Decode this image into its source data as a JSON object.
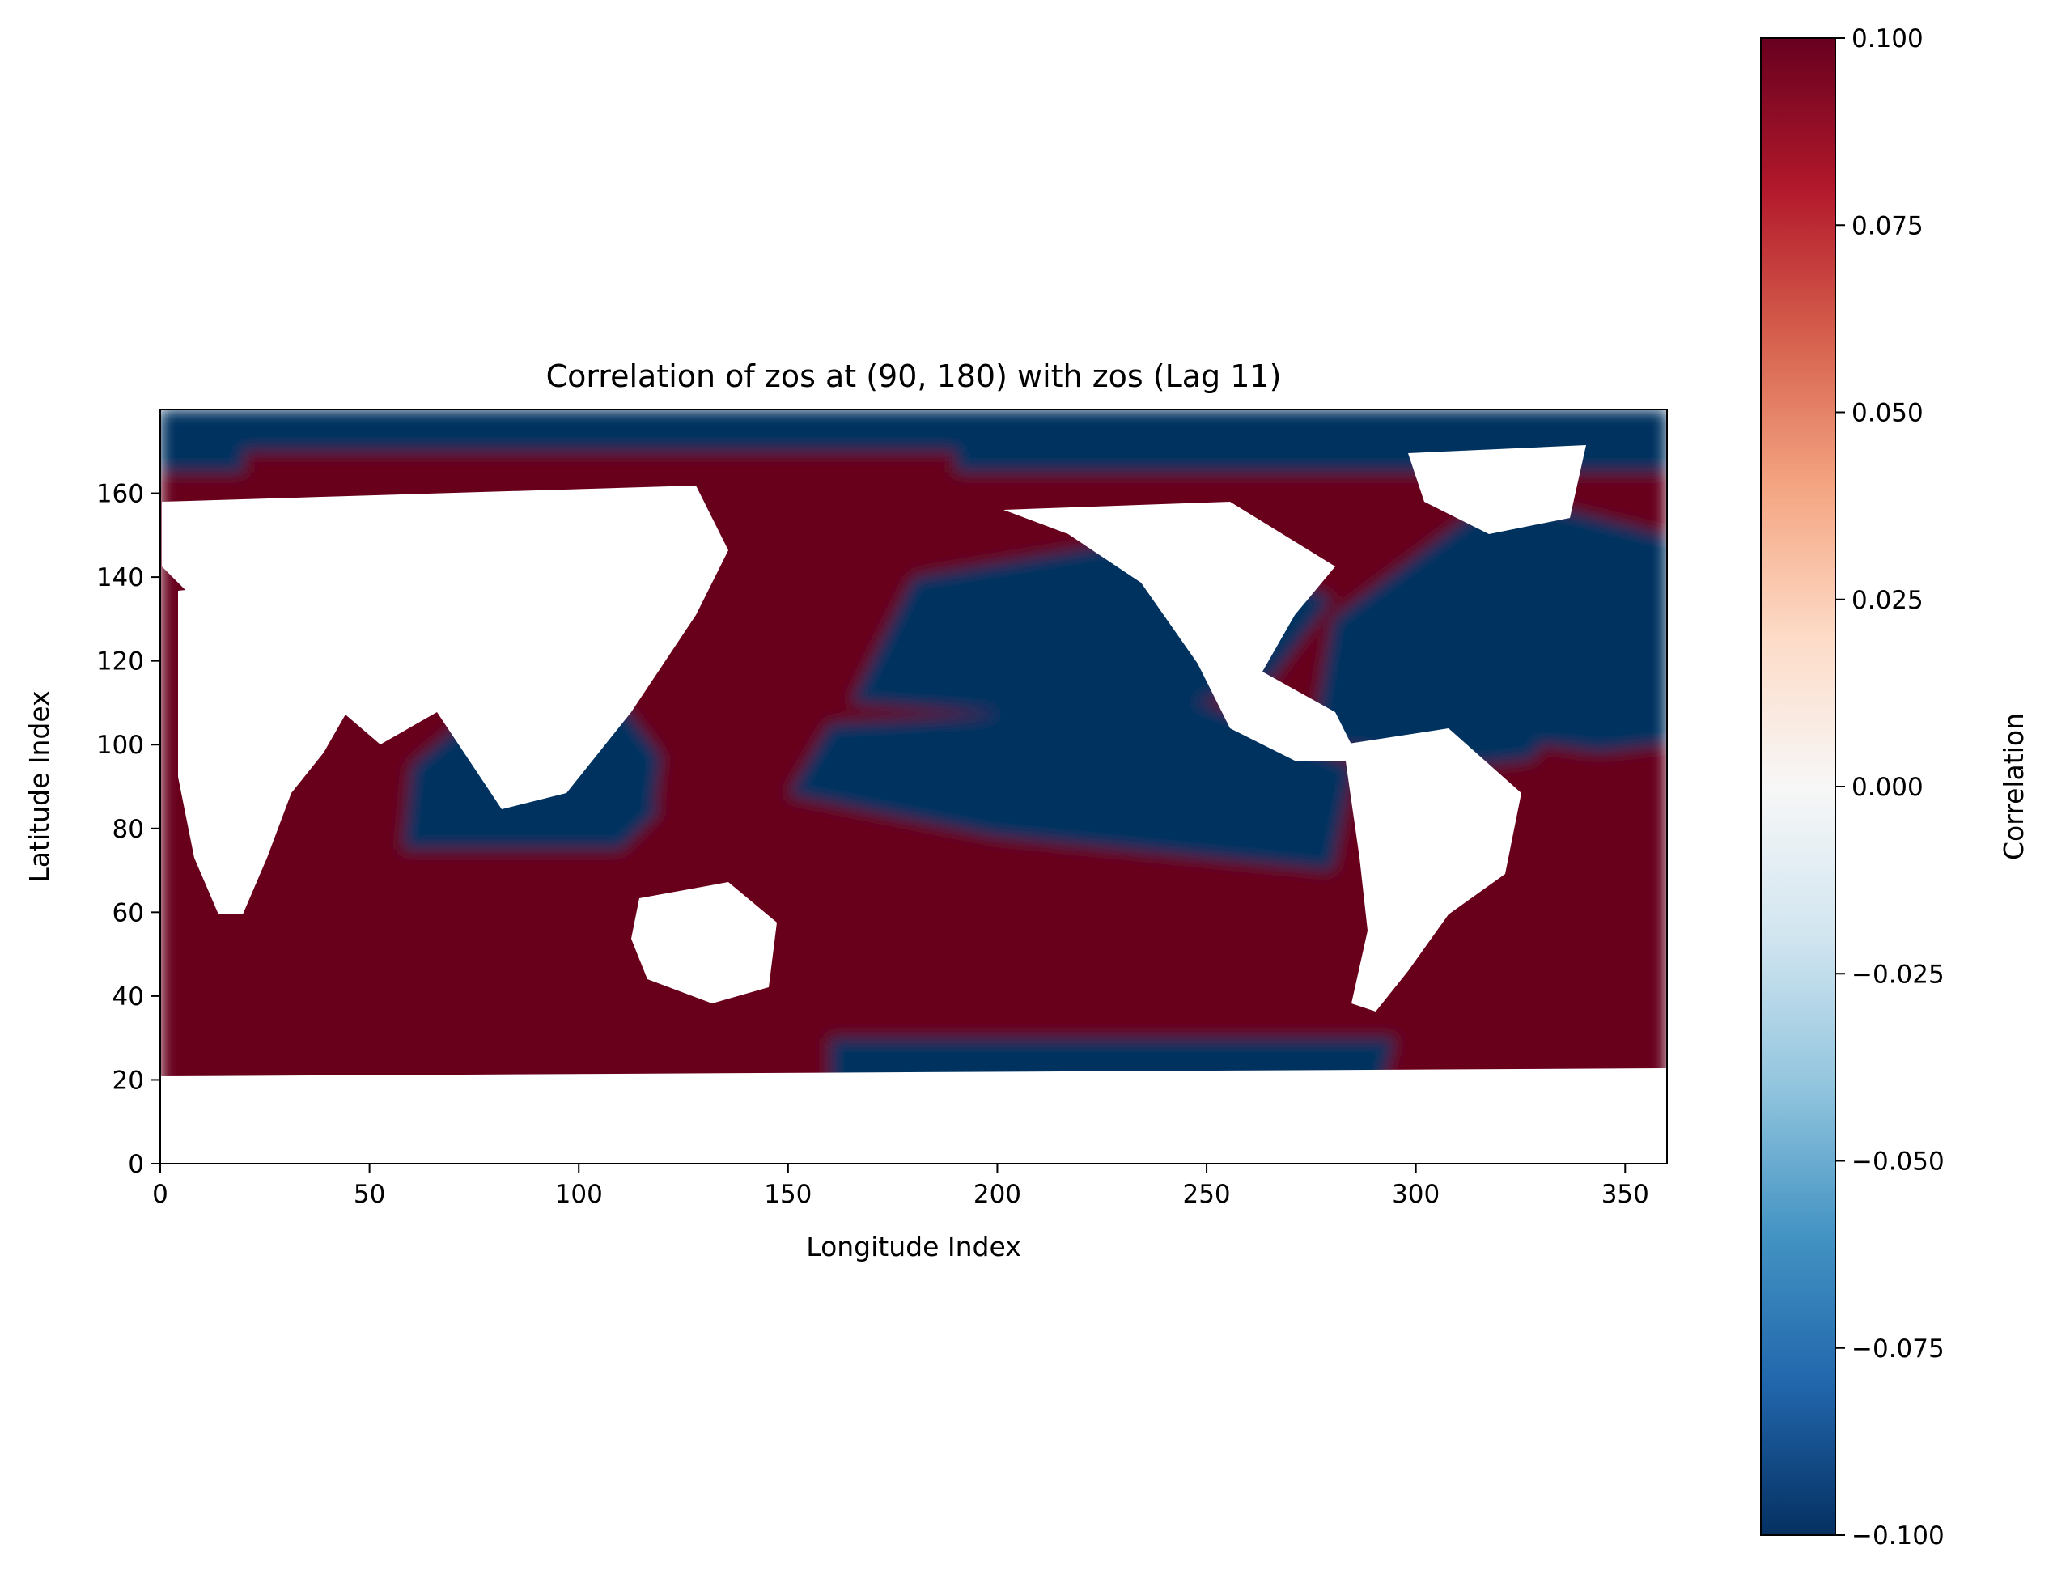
{
  "chart_data": {
    "type": "heatmap",
    "title": "Correlation of zos at (90, 180) with zos (Lag 11)",
    "xlabel": "Longitude Index",
    "ylabel": "Latitude Index",
    "xlim": [
      0,
      360
    ],
    "ylim": [
      0,
      180
    ],
    "x_ticks": [
      0,
      50,
      100,
      150,
      200,
      250,
      300,
      350
    ],
    "y_ticks": [
      0,
      20,
      40,
      60,
      80,
      100,
      120,
      140,
      160
    ],
    "colormap": "RdBu_r",
    "colors": {
      "low": "#053061",
      "mid": "#f7f7f7",
      "high": "#67001f",
      "land": "#ffffff"
    },
    "colorbar": {
      "label": "Correlation",
      "vmin": -0.1,
      "vmax": 0.1,
      "ticks": [
        "0.100",
        "0.075",
        "0.050",
        "0.025",
        "0.000",
        "−0.025",
        "−0.050",
        "−0.075",
        "−0.100"
      ]
    },
    "grid": false,
    "regions": [
      {
        "name": "southern-ocean-atlantic",
        "x": [
          2,
          60,
          100,
          60
        ],
        "y": [
          20,
          20,
          50,
          90
        ],
        "value": 0.1
      },
      {
        "name": "indian-ocean-south",
        "x": [
          70,
          100,
          140,
          160,
          140,
          90
        ],
        "y": [
          45,
          30,
          35,
          55,
          75,
          80
        ],
        "value": 0.1
      },
      {
        "name": "indian-ocean-north",
        "x": [
          58,
          110,
          125,
          110,
          80,
          60
        ],
        "y": [
          75,
          75,
          90,
          110,
          112,
          95
        ],
        "value": -0.1
      },
      {
        "name": "west-pacific-warm-pool",
        "x": [
          118,
          170,
          190,
          175,
          140,
          120
        ],
        "y": [
          85,
          80,
          100,
          115,
          120,
          100
        ],
        "value": 0.1
      },
      {
        "name": "south-pacific-gyre",
        "x": [
          150,
          210,
          255,
          275,
          250,
          190,
          160
        ],
        "y": [
          55,
          35,
          45,
          70,
          80,
          85,
          75
        ],
        "value": 0.1
      },
      {
        "name": "central-pacific-band",
        "x": [
          150,
          200,
          280,
          285,
          250,
          160
        ],
        "y": [
          88,
          78,
          70,
          95,
          110,
          105
        ],
        "value": -0.1
      },
      {
        "name": "north-pacific",
        "x": [
          165,
          230,
          265,
          280,
          240,
          180
        ],
        "y": [
          110,
          105,
          115,
          135,
          150,
          140
        ],
        "value": -0.1
      },
      {
        "name": "north-atlantic",
        "x": [
          275,
          315,
          360,
          360,
          320,
          280
        ],
        "y": [
          100,
          95,
          100,
          150,
          160,
          130
        ],
        "value": -0.1
      },
      {
        "name": "equatorial-atlantic",
        "x": [
          318,
          360,
          360,
          330
        ],
        "y": [
          80,
          80,
          96,
          100
        ],
        "value": 0.1
      },
      {
        "name": "south-atlantic",
        "x": [
          290,
          330,
          360,
          360,
          300
        ],
        "y": [
          20,
          20,
          25,
          65,
          60
        ],
        "value": 0.1
      },
      {
        "name": "southern-ocean-pacific",
        "x": [
          160,
          290,
          295,
          160
        ],
        "y": [
          12,
          12,
          30,
          30
        ],
        "value": -0.1
      },
      {
        "name": "arctic",
        "x": [
          0,
          360,
          360,
          0
        ],
        "y": [
          165,
          165,
          180,
          180
        ],
        "value": -0.1
      },
      {
        "name": "arctic-siberian-shelf",
        "x": [
          20,
          190,
          190,
          20
        ],
        "y": [
          158,
          158,
          170,
          170
        ],
        "value": 0.1
      }
    ]
  }
}
